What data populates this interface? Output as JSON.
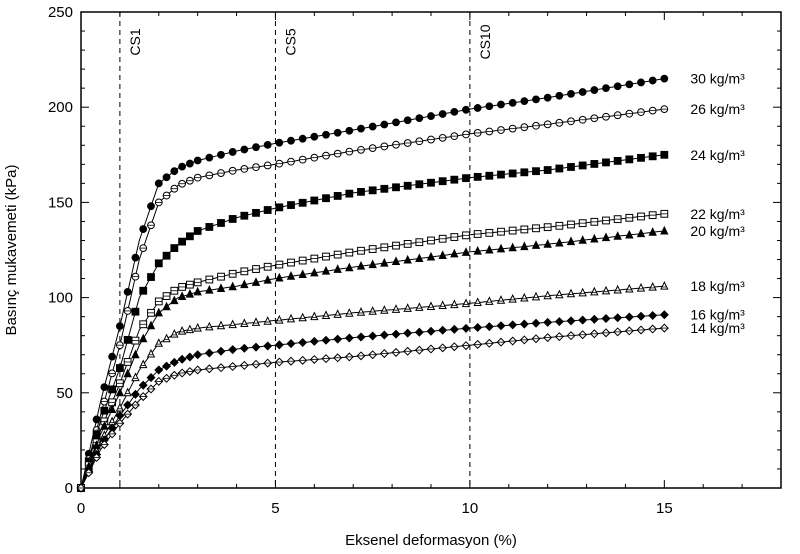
{
  "chart_data": {
    "type": "line",
    "xlabel": "Eksenel deformasyon (%)",
    "ylabel": "Basınç mukavemeti (kPa)",
    "xlim": [
      0,
      18
    ],
    "ylim": [
      0,
      250
    ],
    "xticks": [
      0,
      5,
      10,
      15
    ],
    "yticks": [
      0,
      50,
      100,
      150,
      200,
      250
    ],
    "grid": false,
    "legend": "labels at right end of each series",
    "vertical_markers": [
      {
        "label": "CS1",
        "x": 1
      },
      {
        "label": "CS5",
        "x": 5
      },
      {
        "label": "CS10",
        "x": 10
      }
    ],
    "series": [
      {
        "name": "30 kg/m³",
        "marker": "filled-circle",
        "x": [
          0,
          0.5,
          1,
          1.5,
          2,
          2.5,
          3,
          4,
          5,
          7,
          10,
          12,
          15
        ],
        "values": [
          0,
          45,
          85,
          130,
          160,
          168,
          172,
          177,
          181,
          188,
          199,
          205,
          215
        ]
      },
      {
        "name": "26 kg/m³",
        "marker": "open-circle",
        "x": [
          0,
          0.5,
          1,
          1.5,
          2,
          2.5,
          3,
          4,
          5,
          7,
          10,
          12,
          15
        ],
        "values": [
          0,
          38,
          75,
          120,
          150,
          159,
          163,
          167,
          170,
          177,
          186,
          191,
          199
        ]
      },
      {
        "name": "24 kg/m³",
        "marker": "filled-square",
        "x": [
          0,
          0.5,
          1,
          1.5,
          2,
          2.5,
          3,
          4,
          5,
          7,
          10,
          12,
          15
        ],
        "values": [
          0,
          35,
          63,
          100,
          118,
          128,
          135,
          142,
          147,
          155,
          163,
          167,
          175
        ]
      },
      {
        "name": "22 kg/m³",
        "marker": "open-square",
        "x": [
          0,
          0.5,
          1,
          1.5,
          2,
          2.5,
          3,
          4,
          5,
          7,
          10,
          12,
          15
        ],
        "values": [
          0,
          30,
          55,
          83,
          98,
          105,
          108,
          113,
          117,
          124,
          133,
          137,
          144
        ]
      },
      {
        "name": "20 kg/m³",
        "marker": "filled-triangle",
        "x": [
          0,
          0.5,
          1,
          1.5,
          2,
          2.5,
          3,
          4,
          5,
          7,
          10,
          12,
          15
        ],
        "values": [
          0,
          28,
          50,
          75,
          92,
          100,
          103,
          106,
          110,
          116,
          124,
          128,
          135
        ]
      },
      {
        "name": "18 kg/m³",
        "marker": "open-triangle",
        "x": [
          0,
          0.5,
          1,
          1.5,
          2,
          2.5,
          3,
          4,
          5,
          7,
          10,
          12,
          15
        ],
        "values": [
          0,
          24,
          42,
          62,
          76,
          82,
          84,
          86,
          88,
          92,
          97,
          101,
          106
        ]
      },
      {
        "name": "16 kg/m³",
        "marker": "filled-diamond",
        "x": [
          0,
          0.5,
          1,
          1.5,
          2,
          2.5,
          3,
          4,
          5,
          7,
          10,
          12,
          15
        ],
        "values": [
          0,
          22,
          38,
          52,
          62,
          67,
          70,
          73,
          75,
          79,
          84,
          87,
          91
        ]
      },
      {
        "name": "14 kg/m³",
        "marker": "open-diamond",
        "x": [
          0,
          0.5,
          1,
          1.5,
          2,
          2.5,
          3,
          4,
          5,
          7,
          10,
          12,
          15
        ],
        "values": [
          0,
          20,
          34,
          46,
          56,
          60,
          62,
          64,
          66,
          69,
          75,
          79,
          84
        ]
      }
    ]
  }
}
